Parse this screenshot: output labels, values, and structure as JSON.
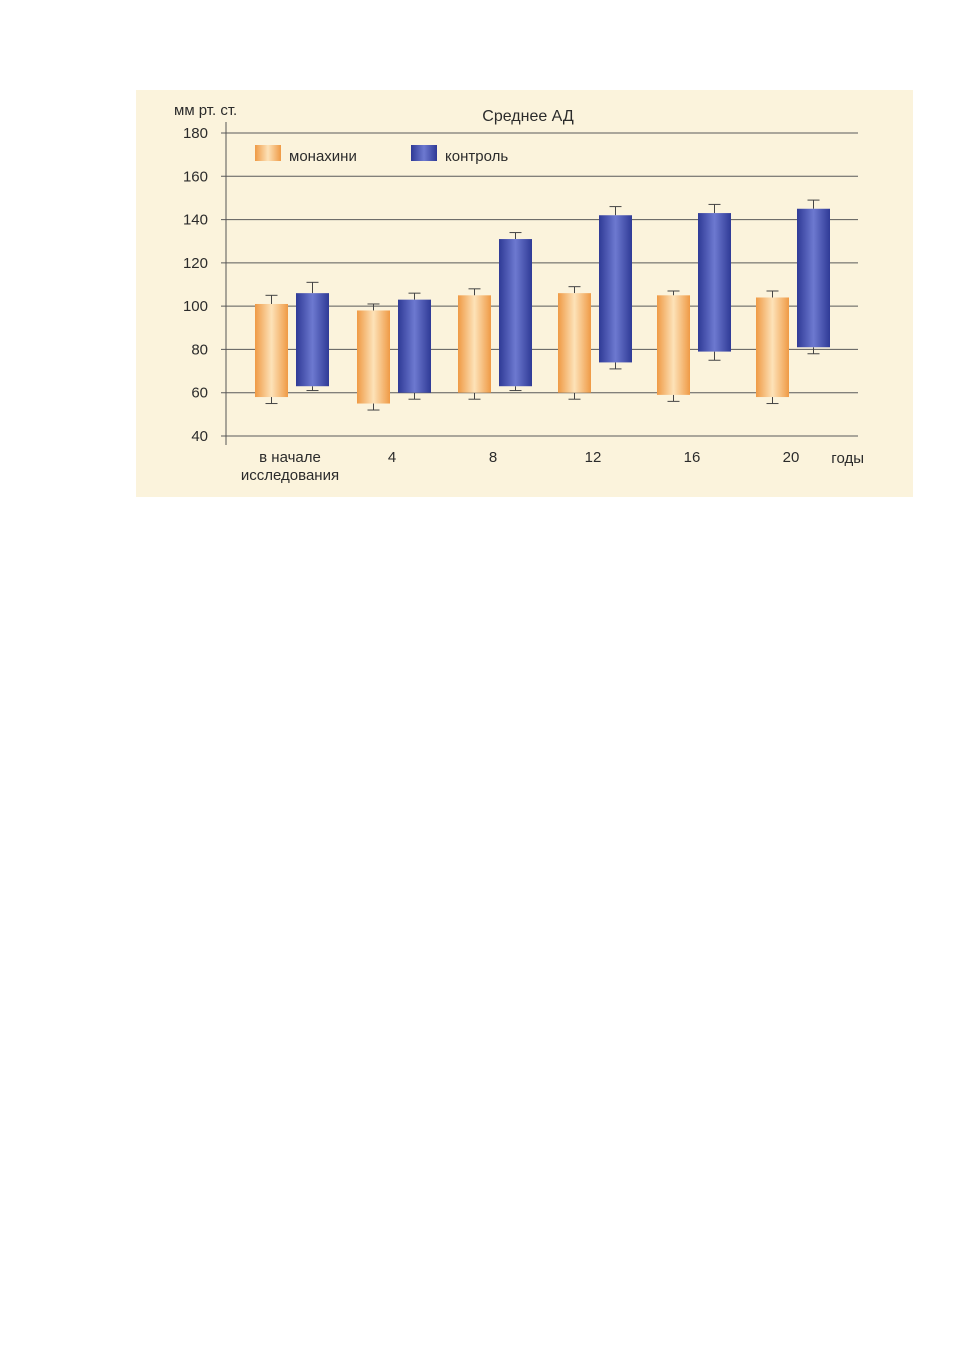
{
  "chart_data": {
    "type": "bar",
    "subtype": "floating-range-bar",
    "title": "Среднее АД",
    "ylabel": "мм рт. ст.",
    "xlabel": "годы",
    "ylim": [
      40,
      180
    ],
    "yticks": [
      40,
      60,
      80,
      100,
      120,
      140,
      160,
      180
    ],
    "grid": true,
    "legend_position": "top-left",
    "categories": [
      [
        "в начале",
        "исследования"
      ],
      [
        "4"
      ],
      [
        "8"
      ],
      [
        "12"
      ],
      [
        "16"
      ],
      [
        "20"
      ]
    ],
    "series": [
      {
        "name": "монахини",
        "color": "#f0a150",
        "low": [
          58,
          55,
          60,
          60,
          59,
          58
        ],
        "high": [
          101,
          98,
          105,
          106,
          105,
          104
        ],
        "err_low": [
          55,
          52,
          57,
          57,
          56,
          55
        ],
        "err_high": [
          105,
          101,
          108,
          109,
          107,
          107
        ]
      },
      {
        "name": "контроль",
        "color": "#3f49a8",
        "low": [
          63,
          60,
          63,
          74,
          79,
          81
        ],
        "high": [
          106,
          103,
          131,
          142,
          143,
          145
        ],
        "err_low": [
          61,
          57,
          61,
          71,
          75,
          78
        ],
        "err_high": [
          111,
          106,
          134,
          146,
          147,
          149
        ]
      }
    ]
  }
}
